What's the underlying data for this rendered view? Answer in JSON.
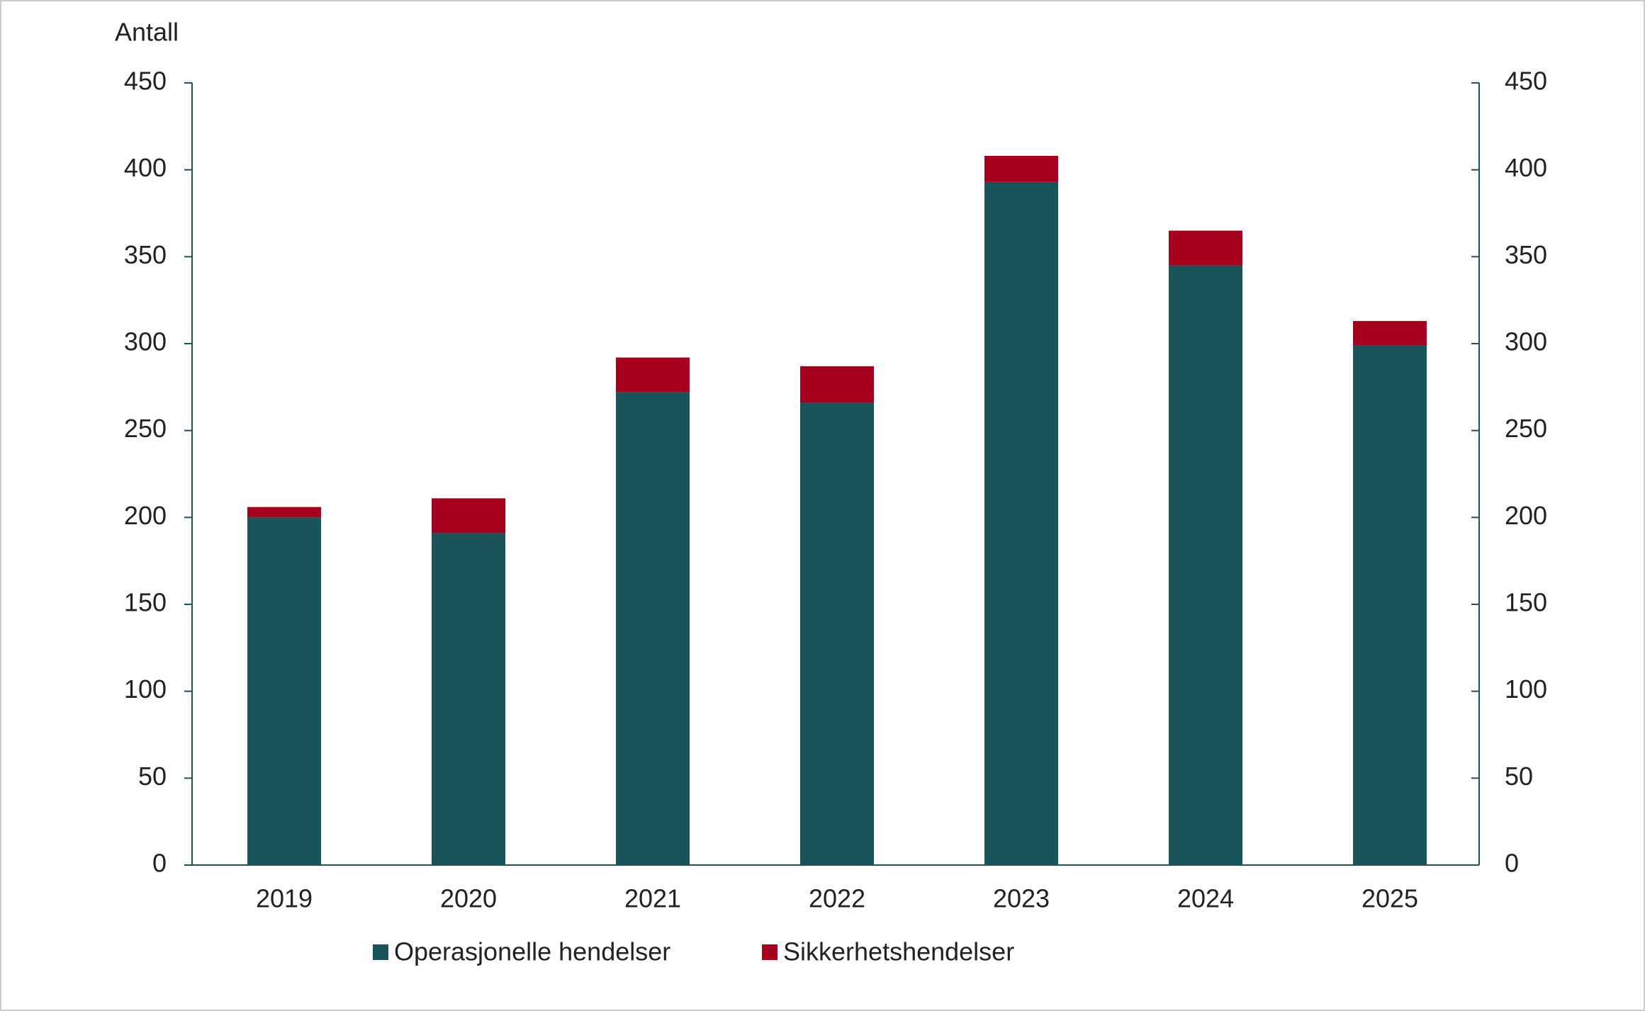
{
  "chart_data": {
    "type": "stacked_bar",
    "y_label": "Antall",
    "categories": [
      "2019",
      "2020",
      "2021",
      "2022",
      "2023",
      "2024",
      "2025"
    ],
    "series": [
      {
        "name": "Operasjonelle hendelser",
        "color": "#1b535a",
        "values": [
          200,
          191,
          272,
          266,
          393,
          345,
          299
        ]
      },
      {
        "name": "Sikkerhetshendelser",
        "color": "#a6001e",
        "values": [
          6,
          20,
          20,
          21,
          15,
          20,
          14
        ]
      }
    ],
    "ylim": [
      0,
      450
    ],
    "yticks": [
      0,
      50,
      100,
      150,
      200,
      250,
      300,
      350,
      400,
      450
    ],
    "y2lim": [
      0,
      450
    ],
    "y2ticks": [
      0,
      50,
      100,
      150,
      200,
      250,
      300,
      350,
      400,
      450
    ],
    "grid": false
  }
}
